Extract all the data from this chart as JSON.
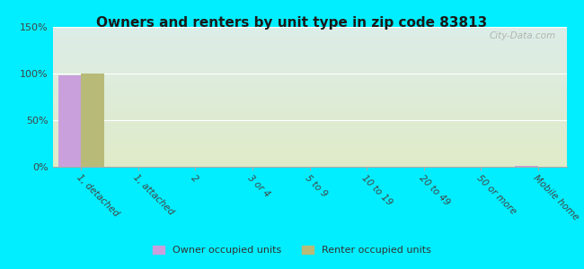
{
  "title": "Owners and renters by unit type in zip code 83813",
  "categories": [
    "1, detached",
    "1, attached",
    "2",
    "3 or 4",
    "5 to 9",
    "10 to 19",
    "20 to 49",
    "50 or more",
    "Mobile home"
  ],
  "owner_values": [
    98,
    0,
    0,
    0,
    0,
    0,
    0,
    0,
    1
  ],
  "renter_values": [
    100,
    0,
    0,
    0,
    0,
    0,
    0,
    0,
    0
  ],
  "owner_color": "#c9a0dc",
  "renter_color": "#b8bb78",
  "background_color": "#00eeff",
  "plot_bg_gradient_top": "#e0ede8",
  "plot_bg_gradient_bottom": "#e8f0d8",
  "grid_color": "#ffffff",
  "ylim": [
    0,
    150
  ],
  "yticks": [
    0,
    50,
    100,
    150
  ],
  "ytick_labels": [
    "0%",
    "50%",
    "100%",
    "150%"
  ],
  "watermark": "City-Data.com",
  "legend_labels": [
    "Owner occupied units",
    "Renter occupied units"
  ],
  "bar_width": 0.4
}
